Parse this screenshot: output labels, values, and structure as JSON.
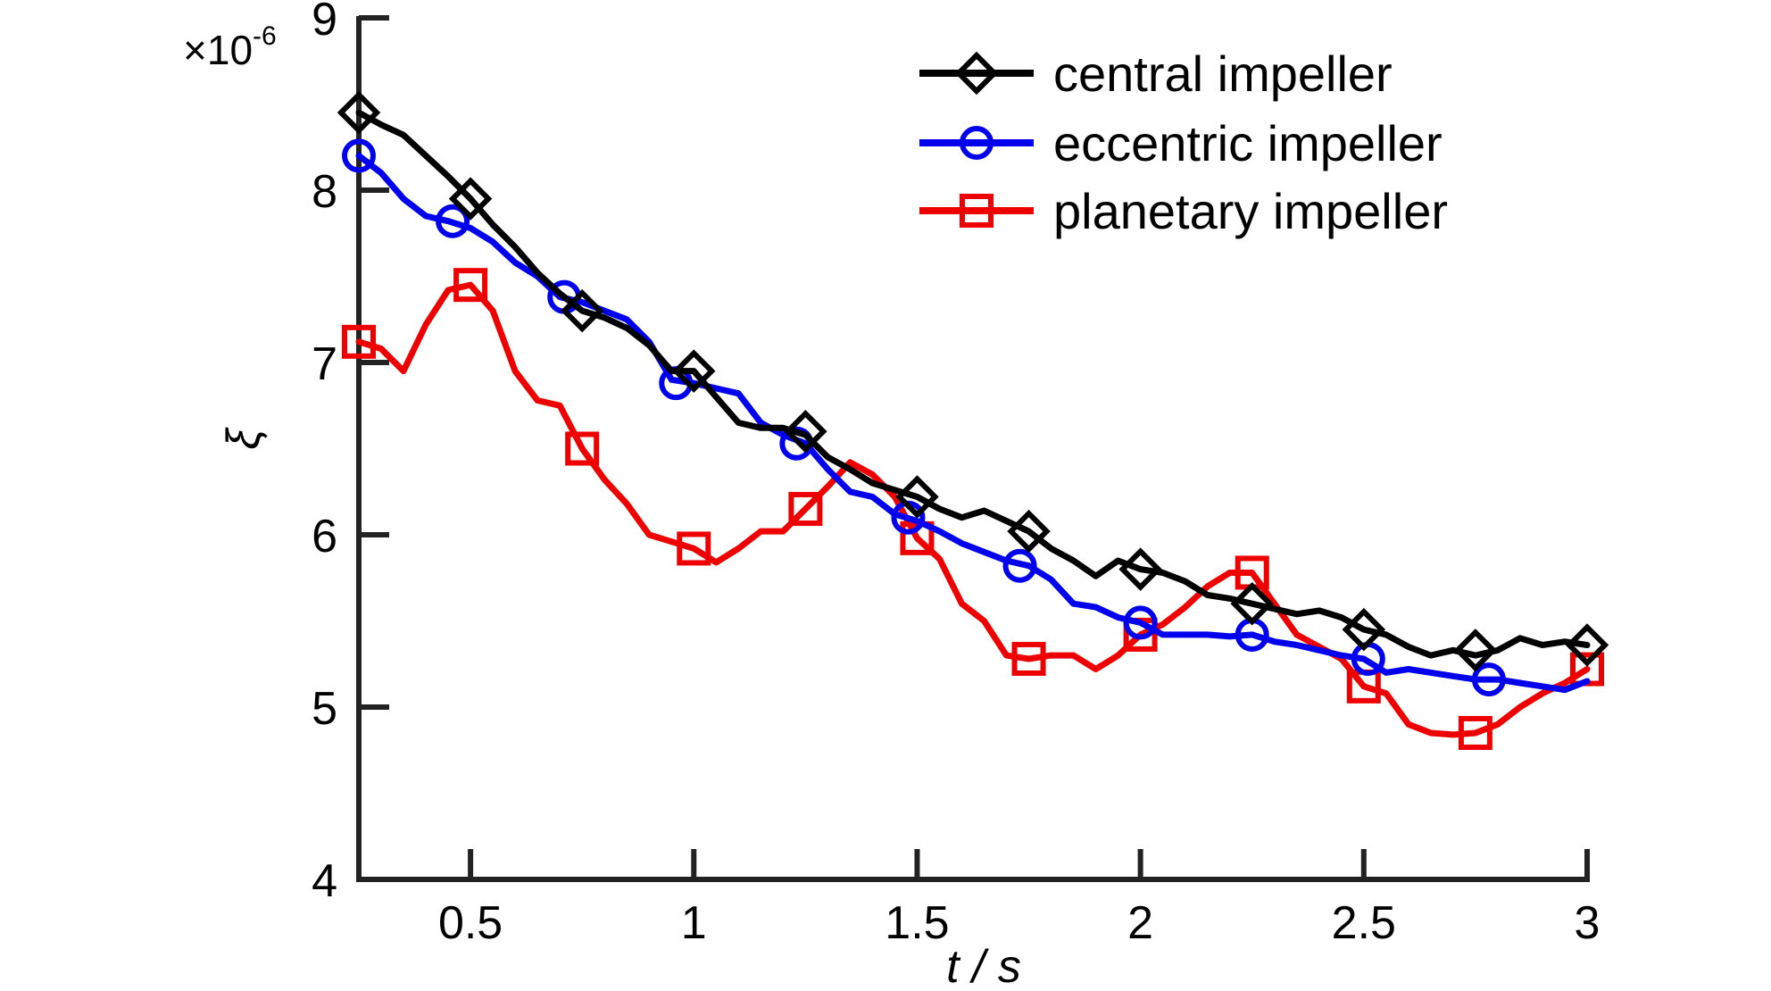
{
  "chart_data": {
    "type": "line",
    "title": "",
    "xlabel": "t / s",
    "ylabel": "ξ",
    "y_multiplier_label": "×10",
    "y_multiplier_exponent": "-6",
    "xlim": [
      0.25,
      3.0
    ],
    "ylim": [
      4,
      9
    ],
    "x_ticks": [
      0.5,
      1,
      1.5,
      2,
      2.5,
      3
    ],
    "x_tick_labels": [
      "0.5",
      "1",
      "1.5",
      "2",
      "2.5",
      "3"
    ],
    "y_ticks": [
      4,
      5,
      6,
      7,
      8,
      9
    ],
    "y_tick_labels": [
      "4",
      "5",
      "6",
      "7",
      "8",
      "9"
    ],
    "grid": false,
    "legend_position": "top-right",
    "series": [
      {
        "name": "central impeller",
        "color": "#000000",
        "marker": "diamond",
        "x": [
          0.25,
          0.3,
          0.35,
          0.4,
          0.45,
          0.5,
          0.55,
          0.6,
          0.65,
          0.7,
          0.75,
          0.8,
          0.85,
          0.9,
          0.95,
          1.0,
          1.05,
          1.1,
          1.15,
          1.2,
          1.25,
          1.3,
          1.35,
          1.4,
          1.45,
          1.5,
          1.55,
          1.6,
          1.65,
          1.7,
          1.75,
          1.8,
          1.85,
          1.9,
          1.95,
          2.0,
          2.05,
          2.1,
          2.15,
          2.2,
          2.25,
          2.3,
          2.35,
          2.4,
          2.45,
          2.5,
          2.55,
          2.6,
          2.65,
          2.7,
          2.75,
          2.8,
          2.85,
          2.9,
          2.95,
          3.0
        ],
        "y": [
          8.45,
          8.38,
          8.32,
          8.2,
          8.08,
          7.95,
          7.8,
          7.67,
          7.52,
          7.4,
          7.3,
          7.26,
          7.2,
          7.1,
          6.95,
          6.95,
          6.8,
          6.65,
          6.62,
          6.62,
          6.58,
          6.45,
          6.38,
          6.3,
          6.26,
          6.22,
          6.15,
          6.1,
          6.14,
          6.08,
          6.02,
          5.92,
          5.85,
          5.76,
          5.85,
          5.8,
          5.78,
          5.73,
          5.65,
          5.63,
          5.6,
          5.57,
          5.54,
          5.56,
          5.52,
          5.45,
          5.42,
          5.35,
          5.3,
          5.33,
          5.3,
          5.33,
          5.4,
          5.36,
          5.38,
          5.36
        ],
        "marker_x": [
          0.25,
          0.5,
          0.75,
          1.0,
          1.25,
          1.5,
          1.75,
          2.0,
          2.25,
          2.5,
          2.75,
          3.0
        ],
        "marker_y": [
          8.45,
          7.95,
          7.3,
          6.95,
          6.6,
          6.22,
          6.02,
          5.8,
          5.6,
          5.45,
          5.33,
          5.36
        ]
      },
      {
        "name": "eccentric impeller",
        "color": "#0000ee",
        "marker": "circle",
        "x": [
          0.25,
          0.3,
          0.35,
          0.4,
          0.45,
          0.5,
          0.55,
          0.6,
          0.65,
          0.7,
          0.75,
          0.8,
          0.85,
          0.9,
          0.95,
          1.0,
          1.05,
          1.1,
          1.15,
          1.2,
          1.25,
          1.3,
          1.35,
          1.4,
          1.45,
          1.5,
          1.55,
          1.6,
          1.65,
          1.7,
          1.75,
          1.8,
          1.85,
          1.9,
          1.95,
          2.0,
          2.05,
          2.1,
          2.15,
          2.2,
          2.25,
          2.3,
          2.35,
          2.4,
          2.45,
          2.5,
          2.55,
          2.6,
          2.65,
          2.7,
          2.75,
          2.8,
          2.85,
          2.9,
          2.95,
          3.0
        ],
        "y": [
          8.2,
          8.1,
          7.95,
          7.85,
          7.82,
          7.78,
          7.7,
          7.58,
          7.5,
          7.38,
          7.35,
          7.3,
          7.25,
          7.12,
          6.9,
          6.88,
          6.85,
          6.82,
          6.65,
          6.58,
          6.53,
          6.38,
          6.25,
          6.22,
          6.12,
          6.08,
          6.02,
          5.95,
          5.9,
          5.85,
          5.82,
          5.74,
          5.6,
          5.58,
          5.52,
          5.49,
          5.42,
          5.42,
          5.42,
          5.41,
          5.42,
          5.38,
          5.36,
          5.33,
          5.3,
          5.28,
          5.2,
          5.22,
          5.2,
          5.18,
          5.16,
          5.16,
          5.14,
          5.12,
          5.1,
          5.15
        ],
        "marker_x": [
          0.25,
          0.46,
          0.71,
          0.96,
          1.23,
          1.48,
          1.73,
          2.0,
          2.25,
          2.51,
          2.78
        ],
        "marker_y": [
          8.2,
          7.82,
          7.38,
          6.88,
          6.53,
          6.1,
          5.82,
          5.49,
          5.42,
          5.28,
          5.16
        ]
      },
      {
        "name": "planetary impeller",
        "color": "#ee0000",
        "marker": "square",
        "x": [
          0.25,
          0.3,
          0.35,
          0.4,
          0.45,
          0.5,
          0.55,
          0.6,
          0.65,
          0.7,
          0.75,
          0.8,
          0.85,
          0.9,
          0.95,
          1.0,
          1.05,
          1.1,
          1.15,
          1.2,
          1.25,
          1.3,
          1.35,
          1.4,
          1.45,
          1.5,
          1.55,
          1.6,
          1.65,
          1.7,
          1.75,
          1.8,
          1.85,
          1.9,
          1.95,
          2.0,
          2.05,
          2.1,
          2.15,
          2.2,
          2.25,
          2.3,
          2.35,
          2.4,
          2.45,
          2.5,
          2.55,
          2.6,
          2.65,
          2.7,
          2.75,
          2.8,
          2.85,
          2.9,
          2.95,
          3.0
        ],
        "y": [
          7.12,
          7.08,
          6.95,
          7.22,
          7.42,
          7.45,
          7.3,
          6.95,
          6.78,
          6.75,
          6.5,
          6.32,
          6.18,
          6.0,
          5.96,
          5.92,
          5.84,
          5.92,
          6.02,
          6.02,
          6.15,
          6.28,
          6.42,
          6.35,
          6.22,
          5.98,
          5.86,
          5.6,
          5.5,
          5.3,
          5.28,
          5.3,
          5.3,
          5.22,
          5.3,
          5.42,
          5.48,
          5.58,
          5.7,
          5.78,
          5.78,
          5.6,
          5.42,
          5.35,
          5.28,
          5.12,
          5.08,
          4.9,
          4.85,
          4.84,
          4.85,
          4.9,
          5.0,
          5.08,
          5.14,
          5.22
        ],
        "marker_x": [
          0.25,
          0.5,
          0.75,
          1.0,
          1.25,
          1.5,
          1.75,
          2.0,
          2.25,
          2.5,
          2.75,
          3.0
        ],
        "marker_y": [
          7.12,
          7.45,
          6.5,
          5.92,
          6.15,
          5.98,
          5.28,
          5.42,
          5.78,
          5.12,
          4.85,
          5.22
        ]
      }
    ]
  }
}
